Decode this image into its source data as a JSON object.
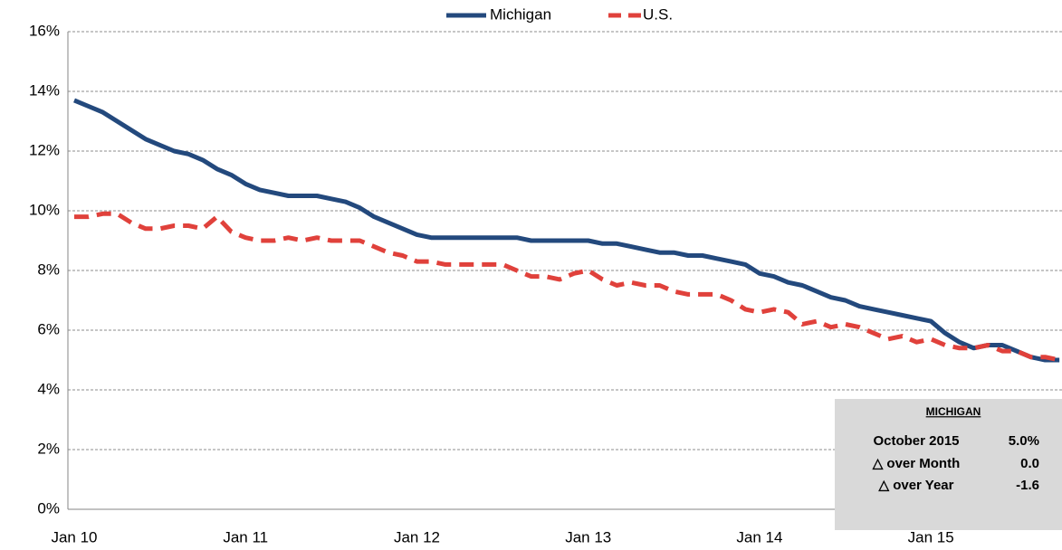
{
  "chart_data": {
    "type": "line",
    "categories": [
      "Jan 10",
      null,
      null,
      null,
      null,
      null,
      null,
      null,
      null,
      null,
      null,
      null,
      "Jan 11",
      null,
      null,
      null,
      null,
      null,
      null,
      null,
      null,
      null,
      null,
      null,
      "Jan 12",
      null,
      null,
      null,
      null,
      null,
      null,
      null,
      null,
      null,
      null,
      null,
      "Jan 13",
      null,
      null,
      null,
      null,
      null,
      null,
      null,
      null,
      null,
      null,
      null,
      "Jan 14",
      null,
      null,
      null,
      null,
      null,
      null,
      null,
      null,
      null,
      null,
      null,
      "Jan 15",
      null,
      null,
      null,
      null,
      null,
      null,
      null,
      null,
      null
    ],
    "series": [
      {
        "name": "Michigan",
        "color": "#23497d",
        "dashed": false,
        "values": [
          13.7,
          13.5,
          13.3,
          13.0,
          12.7,
          12.4,
          12.2,
          12.0,
          11.9,
          11.7,
          11.4,
          11.2,
          10.9,
          10.7,
          10.6,
          10.5,
          10.5,
          10.5,
          10.4,
          10.3,
          10.1,
          9.8,
          9.6,
          9.4,
          9.2,
          9.1,
          9.1,
          9.1,
          9.1,
          9.1,
          9.1,
          9.1,
          9.0,
          9.0,
          9.0,
          9.0,
          9.0,
          8.9,
          8.9,
          8.8,
          8.7,
          8.6,
          8.6,
          8.5,
          8.5,
          8.4,
          8.3,
          8.2,
          7.9,
          7.8,
          7.6,
          7.5,
          7.3,
          7.1,
          7.0,
          6.8,
          6.7,
          6.6,
          6.5,
          6.4,
          6.3,
          5.9,
          5.6,
          5.4,
          5.5,
          5.5,
          5.3,
          5.1,
          5.0,
          5.0
        ]
      },
      {
        "name": "U.S.",
        "color": "#e0413b",
        "dashed": true,
        "values": [
          9.8,
          9.8,
          9.9,
          9.9,
          9.6,
          9.4,
          9.4,
          9.5,
          9.5,
          9.4,
          9.8,
          9.3,
          9.1,
          9.0,
          9.0,
          9.1,
          9.0,
          9.1,
          9.0,
          9.0,
          9.0,
          8.8,
          8.6,
          8.5,
          8.3,
          8.3,
          8.2,
          8.2,
          8.2,
          8.2,
          8.2,
          8.0,
          7.8,
          7.8,
          7.7,
          7.9,
          8.0,
          7.7,
          7.5,
          7.6,
          7.5,
          7.5,
          7.3,
          7.2,
          7.2,
          7.2,
          7.0,
          6.7,
          6.6,
          6.7,
          6.6,
          6.2,
          6.3,
          6.1,
          6.2,
          6.1,
          5.9,
          5.7,
          5.8,
          5.6,
          5.7,
          5.5,
          5.4,
          5.4,
          5.5,
          5.3,
          5.3,
          5.1,
          5.1,
          5.0
        ]
      }
    ],
    "ylim": [
      0,
      16
    ],
    "yticks": [
      {
        "value": 0,
        "label": "0%"
      },
      {
        "value": 2,
        "label": "2%"
      },
      {
        "value": 4,
        "label": "4%"
      },
      {
        "value": 6,
        "label": "6%"
      },
      {
        "value": 8,
        "label": "8%"
      },
      {
        "value": 10,
        "label": "10%"
      },
      {
        "value": 12,
        "label": "12%"
      },
      {
        "value": 14,
        "label": "14%"
      },
      {
        "value": 16,
        "label": "16%"
      }
    ],
    "grid": true,
    "legend": "top",
    "info_box": {
      "title": "MICHIGAN",
      "rows": [
        [
          "October 2015",
          "5.0%"
        ],
        [
          "△ over Month",
          "0.0"
        ],
        [
          "△ over Year",
          "-1.6"
        ]
      ]
    }
  }
}
